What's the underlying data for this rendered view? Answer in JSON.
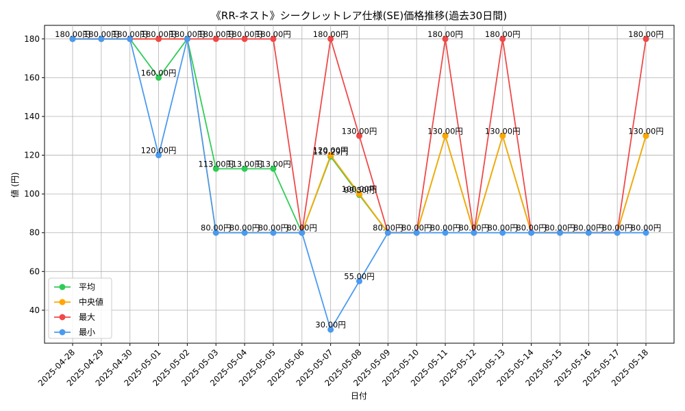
{
  "chart_data": {
    "type": "line",
    "title": "《RR-ネスト》シークレットレア仕様(SE)価格推移(過去30日間)",
    "xlabel": "日付",
    "ylabel": "値 (円)",
    "ylim": [
      23,
      187
    ],
    "yticks": [
      40,
      60,
      80,
      100,
      120,
      140,
      160,
      180
    ],
    "grid": true,
    "legend_position": "lower-left",
    "x": [
      "2025-04-28",
      "2025-04-29",
      "2025-04-30",
      "2025-05-01",
      "2025-05-02",
      "2025-05-03",
      "2025-05-04",
      "2025-05-05",
      "2025-05-06",
      "2025-05-07",
      "2025-05-08",
      "2025-05-09",
      "2025-05-10",
      "2025-05-11",
      "2025-05-12",
      "2025-05-13",
      "2025-05-14",
      "2025-05-15",
      "2025-05-16",
      "2025-05-17",
      "2025-05-18"
    ],
    "series": [
      {
        "name": "平均",
        "color": "#2ecc55",
        "values": [
          180,
          180,
          180,
          160,
          180,
          113,
          113,
          113,
          80,
          119.29,
          99.5,
          80,
          80,
          130,
          80,
          130,
          80,
          80,
          80,
          80,
          130
        ]
      },
      {
        "name": "中央値",
        "color": "#ffa600",
        "values": [
          180,
          180,
          180,
          180,
          180,
          80,
          80,
          80,
          80,
          120,
          100,
          80,
          80,
          130,
          80,
          130,
          80,
          80,
          80,
          80,
          130
        ]
      },
      {
        "name": "最大",
        "color": "#f04848",
        "values": [
          180,
          180,
          180,
          180,
          180,
          180,
          180,
          180,
          80,
          180,
          130,
          80,
          80,
          180,
          80,
          180,
          80,
          80,
          80,
          80,
          180
        ]
      },
      {
        "name": "最小",
        "color": "#4a9af0",
        "values": [
          180,
          180,
          180,
          120,
          180,
          80,
          80,
          80,
          80,
          30,
          55,
          80,
          80,
          80,
          80,
          80,
          80,
          80,
          80,
          80,
          80
        ]
      }
    ],
    "data_labels": [
      {
        "x": 0,
        "y": 180,
        "text": "180.00円"
      },
      {
        "x": 1,
        "y": 180,
        "text": "180.00円"
      },
      {
        "x": 2,
        "y": 180,
        "text": "180.00円"
      },
      {
        "x": 3,
        "y": 180,
        "text": "180.00円"
      },
      {
        "x": 4,
        "y": 180,
        "text": "180.00円"
      },
      {
        "x": 5,
        "y": 180,
        "text": "180.00円"
      },
      {
        "x": 6,
        "y": 180,
        "text": "180.00円"
      },
      {
        "x": 7,
        "y": 180,
        "text": "180.00円"
      },
      {
        "x": 9,
        "y": 180,
        "text": "180.00円"
      },
      {
        "x": 13,
        "y": 180,
        "text": "180.00円"
      },
      {
        "x": 15,
        "y": 180,
        "text": "180.00円"
      },
      {
        "x": 20,
        "y": 180,
        "text": "180.00円"
      },
      {
        "x": 3,
        "y": 160,
        "text": "160.00円"
      },
      {
        "x": 10,
        "y": 130,
        "text": "130.00円"
      },
      {
        "x": 13,
        "y": 130,
        "text": "130.00円"
      },
      {
        "x": 15,
        "y": 130,
        "text": "130.00円"
      },
      {
        "x": 20,
        "y": 130,
        "text": "130.00円"
      },
      {
        "x": 3,
        "y": 120,
        "text": "120.00円"
      },
      {
        "x": 9,
        "y": 120,
        "text": "120.00円"
      },
      {
        "x": 9,
        "y": 119.29,
        "text": "119.29円"
      },
      {
        "x": 5,
        "y": 113,
        "text": "113.00円"
      },
      {
        "x": 6,
        "y": 113,
        "text": "113.00円"
      },
      {
        "x": 7,
        "y": 113,
        "text": "113.00円"
      },
      {
        "x": 10,
        "y": 100,
        "text": "100.00円"
      },
      {
        "x": 10,
        "y": 99.5,
        "text": "99.50円"
      },
      {
        "x": 5,
        "y": 80,
        "text": "80.00円"
      },
      {
        "x": 6,
        "y": 80,
        "text": "80.00円"
      },
      {
        "x": 7,
        "y": 80,
        "text": "80.00円"
      },
      {
        "x": 8,
        "y": 80,
        "text": "80.00円"
      },
      {
        "x": 11,
        "y": 80,
        "text": "80.00円"
      },
      {
        "x": 12,
        "y": 80,
        "text": "80.00円"
      },
      {
        "x": 13,
        "y": 80,
        "text": "80.00円"
      },
      {
        "x": 14,
        "y": 80,
        "text": "80.00円"
      },
      {
        "x": 15,
        "y": 80,
        "text": "80.00円"
      },
      {
        "x": 16,
        "y": 80,
        "text": "80.00円"
      },
      {
        "x": 17,
        "y": 80,
        "text": "80.00円"
      },
      {
        "x": 18,
        "y": 80,
        "text": "80.00円"
      },
      {
        "x": 19,
        "y": 80,
        "text": "80.00円"
      },
      {
        "x": 20,
        "y": 80,
        "text": "80.00円"
      },
      {
        "x": 10,
        "y": 55,
        "text": "55.00円"
      },
      {
        "x": 9,
        "y": 30,
        "text": "30.00円"
      }
    ]
  }
}
